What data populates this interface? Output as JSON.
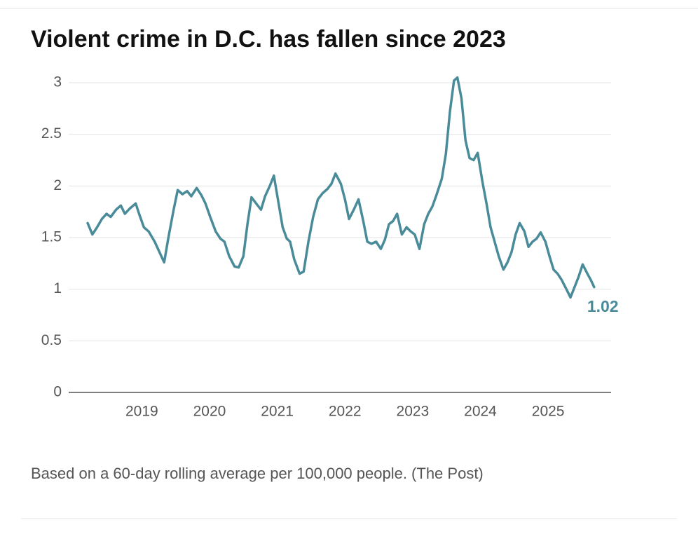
{
  "chart_data": {
    "type": "line",
    "title": "Violent crime in D.C. has fallen since 2023",
    "note": "Based on a 60-day rolling average per 100,000 people. (The Post)",
    "xlim": [
      2017.92,
      2025.93
    ],
    "xticks": [
      2019,
      2020,
      2021,
      2022,
      2023,
      2024,
      2025
    ],
    "ylim": [
      0,
      3
    ],
    "yticks": [
      0,
      0.5,
      1,
      1.5,
      2,
      2.5,
      3
    ],
    "grid": true,
    "x": [
      2018.2,
      2018.27,
      2018.34,
      2018.41,
      2018.48,
      2018.54,
      2018.62,
      2018.69,
      2018.75,
      2018.82,
      2018.91,
      2018.96,
      2019.03,
      2019.1,
      2019.19,
      2019.26,
      2019.33,
      2019.39,
      2019.47,
      2019.53,
      2019.6,
      2019.67,
      2019.73,
      2019.81,
      2019.88,
      2019.94,
      2020.01,
      2020.09,
      2020.16,
      2020.22,
      2020.29,
      2020.37,
      2020.43,
      2020.5,
      2020.56,
      2020.62,
      2020.7,
      2020.76,
      2020.82,
      2020.89,
      2020.95,
      2021.02,
      2021.08,
      2021.14,
      2021.19,
      2021.25,
      2021.33,
      2021.39,
      2021.46,
      2021.53,
      2021.6,
      2021.67,
      2021.74,
      2021.8,
      2021.86,
      2021.94,
      2022.0,
      2022.06,
      2022.13,
      2022.2,
      2022.27,
      2022.33,
      2022.39,
      2022.46,
      2022.53,
      2022.59,
      2022.65,
      2022.71,
      2022.77,
      2022.84,
      2022.91,
      2022.97,
      2023.03,
      2023.1,
      2023.17,
      2023.23,
      2023.29,
      2023.35,
      2023.43,
      2023.49,
      2023.55,
      2023.61,
      2023.66,
      2023.72,
      2023.78,
      2023.84,
      2023.9,
      2023.96,
      2024.03,
      2024.09,
      2024.15,
      2024.21,
      2024.27,
      2024.34,
      2024.4,
      2024.46,
      2024.52,
      2024.58,
      2024.65,
      2024.71,
      2024.77,
      2024.83,
      2024.89,
      2024.96,
      2025.02,
      2025.08,
      2025.14,
      2025.2,
      2025.27,
      2025.33,
      2025.39,
      2025.45,
      2025.51,
      2025.58,
      2025.63,
      2025.68
    ],
    "series": [
      {
        "color": "#4a8b99",
        "values": [
          1.64,
          1.53,
          1.6,
          1.68,
          1.73,
          1.7,
          1.77,
          1.81,
          1.73,
          1.78,
          1.83,
          1.73,
          1.6,
          1.56,
          1.46,
          1.36,
          1.26,
          1.49,
          1.77,
          1.96,
          1.92,
          1.95,
          1.9,
          1.98,
          1.91,
          1.83,
          1.7,
          1.56,
          1.49,
          1.46,
          1.32,
          1.22,
          1.21,
          1.32,
          1.63,
          1.89,
          1.82,
          1.77,
          1.9,
          2.0,
          2.1,
          1.83,
          1.6,
          1.49,
          1.46,
          1.29,
          1.15,
          1.17,
          1.46,
          1.7,
          1.87,
          1.93,
          1.97,
          2.02,
          2.12,
          2.02,
          1.87,
          1.68,
          1.77,
          1.87,
          1.66,
          1.46,
          1.44,
          1.46,
          1.39,
          1.48,
          1.63,
          1.66,
          1.73,
          1.53,
          1.6,
          1.56,
          1.53,
          1.39,
          1.63,
          1.73,
          1.8,
          1.91,
          2.07,
          2.31,
          2.72,
          3.02,
          3.05,
          2.85,
          2.44,
          2.27,
          2.25,
          2.32,
          2.04,
          1.83,
          1.6,
          1.46,
          1.32,
          1.19,
          1.26,
          1.36,
          1.53,
          1.64,
          1.56,
          1.41,
          1.46,
          1.49,
          1.55,
          1.46,
          1.32,
          1.19,
          1.15,
          1.09,
          1.0,
          0.92,
          1.02,
          1.12,
          1.24,
          1.15,
          1.09,
          1.02
        ]
      }
    ]
  }
}
